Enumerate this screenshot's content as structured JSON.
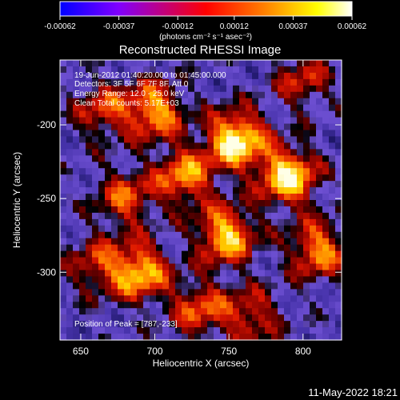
{
  "chart_data": {
    "type": "heatmap",
    "title": "Reconstructed RHESSI Image",
    "xlabel": "Heliocentric X (arcsec)",
    "ylabel": "Heliocentric Y (arcsec)",
    "xlim": [
      636,
      826
    ],
    "ylim": [
      -346,
      -156
    ],
    "x_ticks": [
      650,
      700,
      750,
      800
    ],
    "y_ticks": [
      -200,
      -250,
      -300
    ],
    "colorbar": {
      "range": [
        -0.00062,
        0.00062
      ],
      "ticks": [
        "-0.00062",
        "-0.00037",
        "-0.00012",
        "0.00012",
        "0.00037",
        "0.00062"
      ],
      "tick_values": [
        -0.00062,
        -0.00037,
        -0.00012,
        0.00012,
        0.00037,
        0.00062
      ],
      "unit_label": "(photons cm⁻² s⁻¹ asec⁻²)",
      "colors": [
        "#0000ff",
        "#8000ff",
        "#ff0000",
        "#ff8000",
        "#ffff00",
        "#ffffff"
      ]
    },
    "annotations": [
      "19-Jun-2012 01:40:20.000 to 01:45:00.000",
      "Detectors: 3F 5F 6F 7F 8F, Att 0",
      "Energy Range: 12.0 - 25.0 keV",
      "Clean    Total counts: 5.17E+03"
    ],
    "peak_label": "Position of Peak = [787,-233]",
    "peak": [
      787,
      -233
    ],
    "hotspots": [
      {
        "x": 755,
        "y": -210,
        "v": 1.0
      },
      {
        "x": 790,
        "y": -235,
        "v": 0.95
      },
      {
        "x": 748,
        "y": -275,
        "v": 0.85
      },
      {
        "x": 690,
        "y": -300,
        "v": 0.8
      },
      {
        "x": 720,
        "y": -235,
        "v": 0.7
      },
      {
        "x": 700,
        "y": -190,
        "v": 0.75
      },
      {
        "x": 665,
        "y": -190,
        "v": 0.5
      },
      {
        "x": 810,
        "y": -285,
        "v": 0.7
      },
      {
        "x": 730,
        "y": -325,
        "v": 0.55
      },
      {
        "x": 765,
        "y": -330,
        "v": 0.5
      },
      {
        "x": 660,
        "y": -295,
        "v": 0.45
      },
      {
        "x": 800,
        "y": -170,
        "v": 0.45
      },
      {
        "x": 680,
        "y": -250,
        "v": 0.55
      }
    ]
  },
  "footer": {
    "timestamp": "11-May-2022 18:21"
  }
}
